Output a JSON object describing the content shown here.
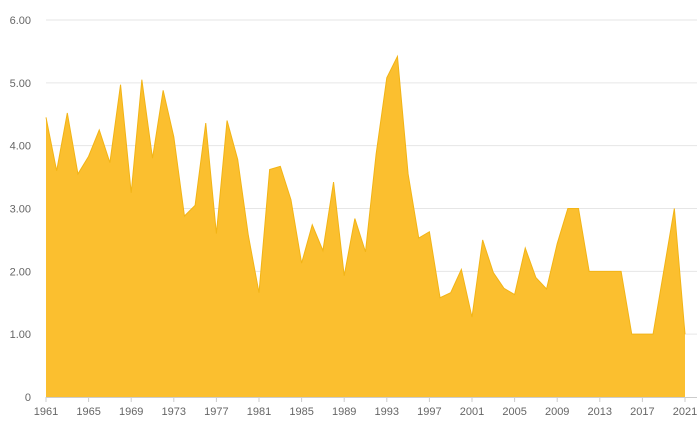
{
  "chart_data": {
    "type": "area",
    "title": "",
    "xlabel": "",
    "ylabel": "",
    "x": [
      1961,
      1962,
      1963,
      1964,
      1965,
      1966,
      1967,
      1968,
      1969,
      1970,
      1971,
      1972,
      1973,
      1974,
      1975,
      1976,
      1977,
      1978,
      1979,
      1980,
      1981,
      1982,
      1983,
      1984,
      1985,
      1986,
      1987,
      1988,
      1989,
      1990,
      1991,
      1992,
      1993,
      1994,
      1995,
      1996,
      1997,
      1998,
      1999,
      2000,
      2001,
      2002,
      2003,
      2004,
      2005,
      2006,
      2007,
      2008,
      2009,
      2010,
      2011,
      2012,
      2013,
      2014,
      2015,
      2016,
      2017,
      2018,
      2019,
      2020,
      2021
    ],
    "series": [
      {
        "values": [
          4.45,
          3.6,
          4.52,
          3.55,
          3.83,
          4.25,
          3.73,
          4.97,
          3.25,
          5.05,
          3.8,
          4.88,
          4.14,
          2.88,
          3.05,
          4.36,
          2.6,
          4.4,
          3.78,
          2.57,
          1.66,
          3.62,
          3.67,
          3.14,
          2.13,
          2.74,
          2.33,
          3.42,
          1.93,
          2.84,
          2.31,
          3.87,
          5.08,
          5.42,
          3.55,
          2.53,
          2.63,
          1.58,
          1.66,
          2.03,
          1.27,
          2.5,
          1.98,
          1.73,
          1.63,
          2.37,
          1.9,
          1.72,
          2.44,
          3.0,
          3.0,
          2.0,
          2.0,
          2.0,
          2.0,
          1.0,
          1.0,
          1.0,
          2.0,
          3.0,
          1.0
        ],
        "color": "#fbbf2f"
      }
    ],
    "xlim": [
      1961,
      2021
    ],
    "ylim": [
      0,
      6
    ],
    "xticks": [
      1961,
      1965,
      1969,
      1973,
      1977,
      1981,
      1985,
      1989,
      1993,
      1997,
      2001,
      2005,
      2009,
      2013,
      2017,
      2021
    ],
    "yticks": [
      0,
      1,
      2,
      3,
      4,
      5,
      6
    ],
    "ytick_labels": [
      "0",
      "1.00",
      "2.00",
      "3.00",
      "4.00",
      "5.00",
      "6.00"
    ],
    "grid": true,
    "fill_color": "#fbbf2f",
    "line_color": "#f2b416",
    "grid_color": "#e6e6e6"
  }
}
